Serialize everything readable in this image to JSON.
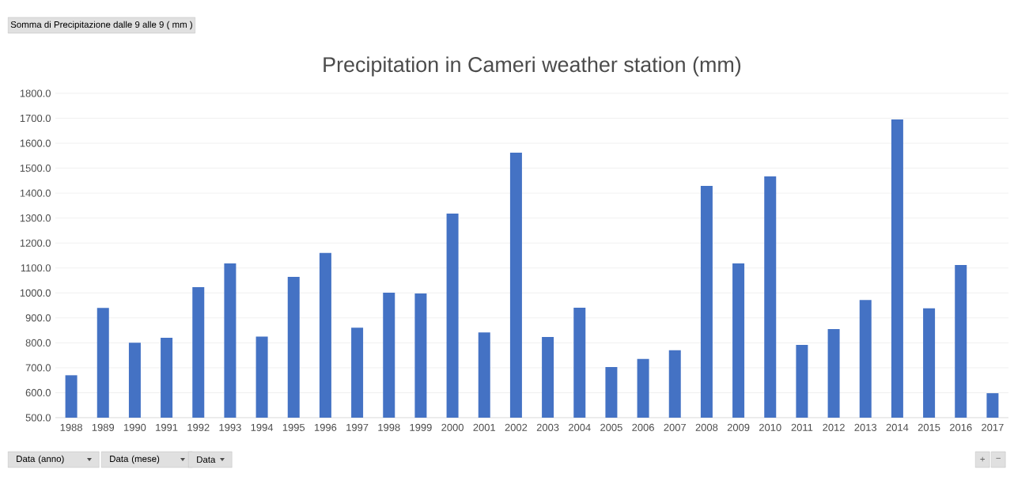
{
  "chart_data": {
    "type": "bar",
    "title": "Precipitation in Cameri weather station (mm)",
    "categories": [
      "1988",
      "1989",
      "1990",
      "1991",
      "1992",
      "1993",
      "1994",
      "1995",
      "1996",
      "1997",
      "1998",
      "1999",
      "2000",
      "2001",
      "2002",
      "2003",
      "2004",
      "2005",
      "2006",
      "2007",
      "2008",
      "2009",
      "2010",
      "2011",
      "2012",
      "2013",
      "2014",
      "2015",
      "2016",
      "2017"
    ],
    "values": [
      670,
      940,
      800,
      820,
      1023,
      1118,
      825,
      1064,
      1160,
      861,
      1001,
      998,
      1318,
      842,
      1562,
      823,
      941,
      703,
      735,
      770,
      1429,
      1118,
      1467,
      792,
      855,
      972,
      1695,
      938,
      1112,
      598
    ],
    "color": "#4472c4",
    "ylim": [
      500,
      1800
    ],
    "yticks": [
      {
        "value": 500,
        "label": "500.0"
      },
      {
        "value": 600,
        "label": "600.0"
      },
      {
        "value": 700,
        "label": "700.0"
      },
      {
        "value": 800,
        "label": "800.0"
      },
      {
        "value": 900,
        "label": "900.0"
      },
      {
        "value": 1000,
        "label": "1000.0"
      },
      {
        "value": 1100,
        "label": "1100.0"
      },
      {
        "value": 1200,
        "label": "1200.0"
      },
      {
        "value": 1300,
        "label": "1300.0"
      },
      {
        "value": 1400,
        "label": "1400.0"
      },
      {
        "value": 1500,
        "label": "1500.0"
      },
      {
        "value": 1600,
        "label": "1600.0"
      },
      {
        "value": 1700,
        "label": "1700.0"
      },
      {
        "value": 1800,
        "label": "1800.0"
      }
    ],
    "grid": "y",
    "annotations": [
      "Somma di Precipitazione dalle 9 alle 9 ( mm )",
      "Data (anno)",
      "Data (mese)",
      "Data",
      "+",
      "−"
    ]
  }
}
